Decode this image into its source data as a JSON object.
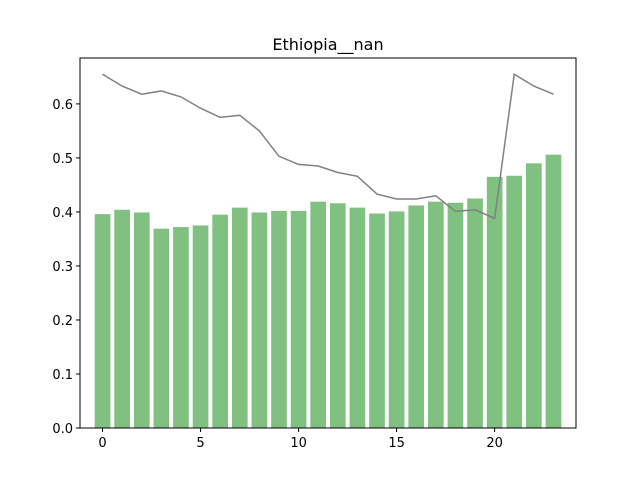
{
  "chart_data": {
    "type": "bar",
    "title": "Ethiopia__nan",
    "xlabel": "",
    "ylabel": "",
    "x": [
      0,
      1,
      2,
      3,
      4,
      5,
      6,
      7,
      8,
      9,
      10,
      11,
      12,
      13,
      14,
      15,
      16,
      17,
      18,
      19,
      20,
      21,
      22,
      23
    ],
    "xlim": [
      -1.15,
      24.15
    ],
    "ylim": [
      0,
      0.685
    ],
    "xticks": [
      0,
      5,
      10,
      15,
      20
    ],
    "yticks": [
      0.0,
      0.1,
      0.2,
      0.3,
      0.4,
      0.5,
      0.6
    ],
    "grid": false,
    "series": [
      {
        "kind": "bar",
        "color": "#80c080",
        "values": [
          0.396,
          0.404,
          0.399,
          0.369,
          0.372,
          0.375,
          0.395,
          0.408,
          0.399,
          0.402,
          0.402,
          0.419,
          0.416,
          0.408,
          0.397,
          0.401,
          0.412,
          0.419,
          0.417,
          0.425,
          0.465,
          0.467,
          0.49,
          0.506
        ]
      },
      {
        "kind": "line",
        "color": "#808080",
        "values": [
          0.655,
          0.633,
          0.618,
          0.624,
          0.613,
          0.592,
          0.575,
          0.579,
          0.55,
          0.503,
          0.488,
          0.485,
          0.473,
          0.466,
          0.433,
          0.424,
          0.424,
          0.43,
          0.401,
          0.404,
          0.388,
          0.655,
          0.633,
          0.618
        ]
      }
    ]
  }
}
